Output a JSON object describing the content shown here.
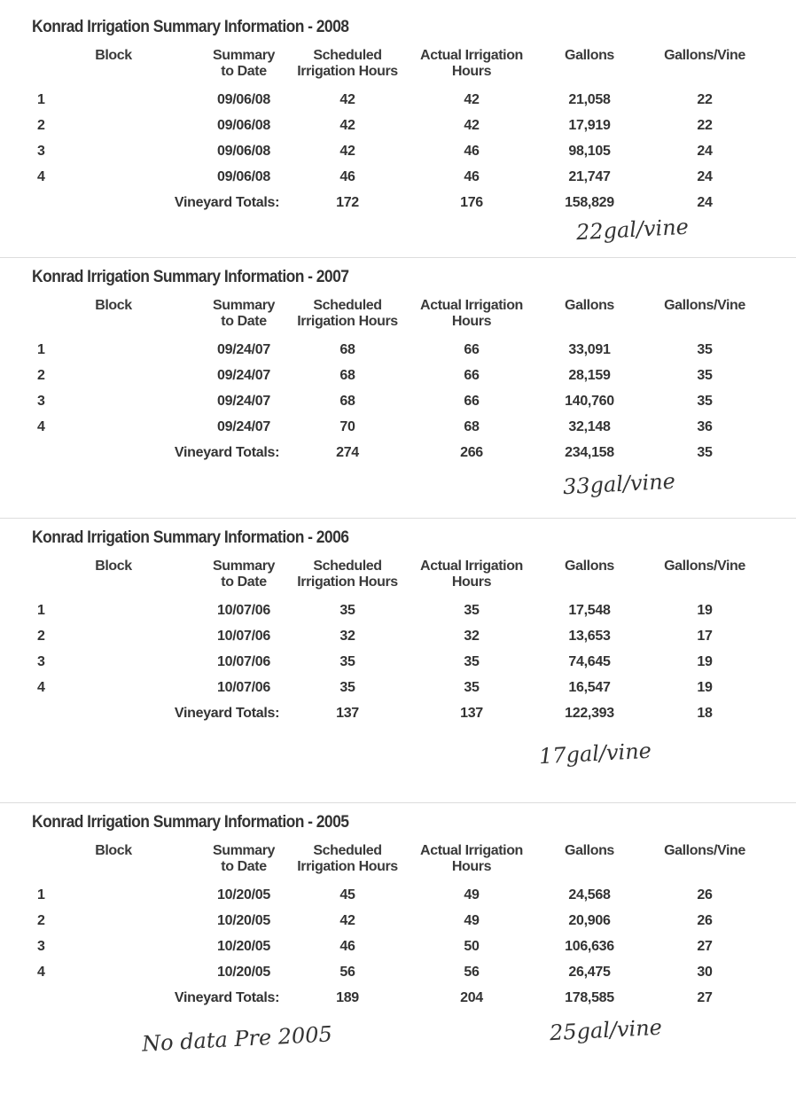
{
  "columns": [
    "Block",
    "Summary\nto Date",
    "Scheduled\nIrrigation Hours",
    "Actual Irrigation\nHours",
    "Gallons",
    "Gallons/Vine"
  ],
  "totals_label": "Vineyard Totals:",
  "sections": [
    {
      "title": "Konrad Irrigation Summary Information - 2008",
      "rows": [
        [
          "1",
          "09/06/08",
          "42",
          "42",
          "21,058",
          "22"
        ],
        [
          "2",
          "09/06/08",
          "42",
          "42",
          "17,919",
          "22"
        ],
        [
          "3",
          "09/06/08",
          "42",
          "46",
          "98,105",
          "24"
        ],
        [
          "4",
          "09/06/08",
          "46",
          "46",
          "21,747",
          "24"
        ]
      ],
      "totals": [
        "172",
        "176",
        "158,829",
        "24"
      ],
      "note": "22gal/vine"
    },
    {
      "title": "Konrad Irrigation Summary Information - 2007",
      "rows": [
        [
          "1",
          "09/24/07",
          "68",
          "66",
          "33,091",
          "35"
        ],
        [
          "2",
          "09/24/07",
          "68",
          "66",
          "28,159",
          "35"
        ],
        [
          "3",
          "09/24/07",
          "68",
          "66",
          "140,760",
          "35"
        ],
        [
          "4",
          "09/24/07",
          "70",
          "68",
          "32,148",
          "36"
        ]
      ],
      "totals": [
        "274",
        "266",
        "234,158",
        "35"
      ],
      "note": "33gal/vine"
    },
    {
      "title": "Konrad Irrigation Summary Information - 2006",
      "rows": [
        [
          "1",
          "10/07/06",
          "35",
          "35",
          "17,548",
          "19"
        ],
        [
          "2",
          "10/07/06",
          "32",
          "32",
          "13,653",
          "17"
        ],
        [
          "3",
          "10/07/06",
          "35",
          "35",
          "74,645",
          "19"
        ],
        [
          "4",
          "10/07/06",
          "35",
          "35",
          "16,547",
          "19"
        ]
      ],
      "totals": [
        "137",
        "137",
        "122,393",
        "18"
      ],
      "note": "17gal/vine"
    },
    {
      "title": "Konrad Irrigation Summary Information - 2005",
      "rows": [
        [
          "1",
          "10/20/05",
          "45",
          "49",
          "24,568",
          "26"
        ],
        [
          "2",
          "10/20/05",
          "42",
          "49",
          "20,906",
          "26"
        ],
        [
          "3",
          "10/20/05",
          "46",
          "50",
          "106,636",
          "27"
        ],
        [
          "4",
          "10/20/05",
          "56",
          "56",
          "26,475",
          "30"
        ]
      ],
      "totals": [
        "189",
        "204",
        "178,585",
        "27"
      ],
      "note": "25gal/vine"
    }
  ],
  "footer_note": "No data Pre 2005"
}
